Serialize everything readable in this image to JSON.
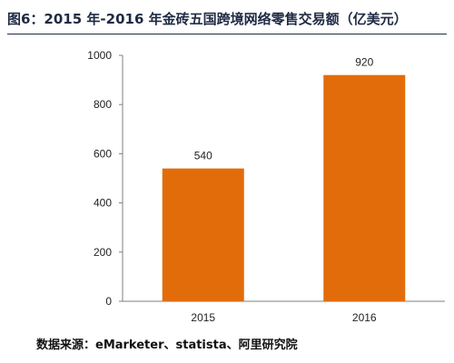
{
  "figure": {
    "title": "图6：2015 年-2016 年金砖五国跨境网络零售交易额（亿美元）",
    "source": "数据来源：eMarketer、statista、阿里研究院"
  },
  "colors": {
    "bar": "#E36C0A",
    "axis": "#7f7f7f",
    "title_rule": "#1f2a44"
  },
  "chart_data": {
    "type": "bar",
    "categories": [
      "2015",
      "2016"
    ],
    "values": [
      540,
      920
    ],
    "data_labels": [
      "540",
      "920"
    ],
    "title": "图6：2015 年-2016 年金砖五国跨境网络零售交易额（亿美元）",
    "xlabel": "",
    "ylabel": "",
    "ylim": [
      0,
      1000
    ],
    "yticks": [
      0,
      200,
      400,
      600,
      800,
      1000
    ],
    "grid": false,
    "legend": "none"
  }
}
